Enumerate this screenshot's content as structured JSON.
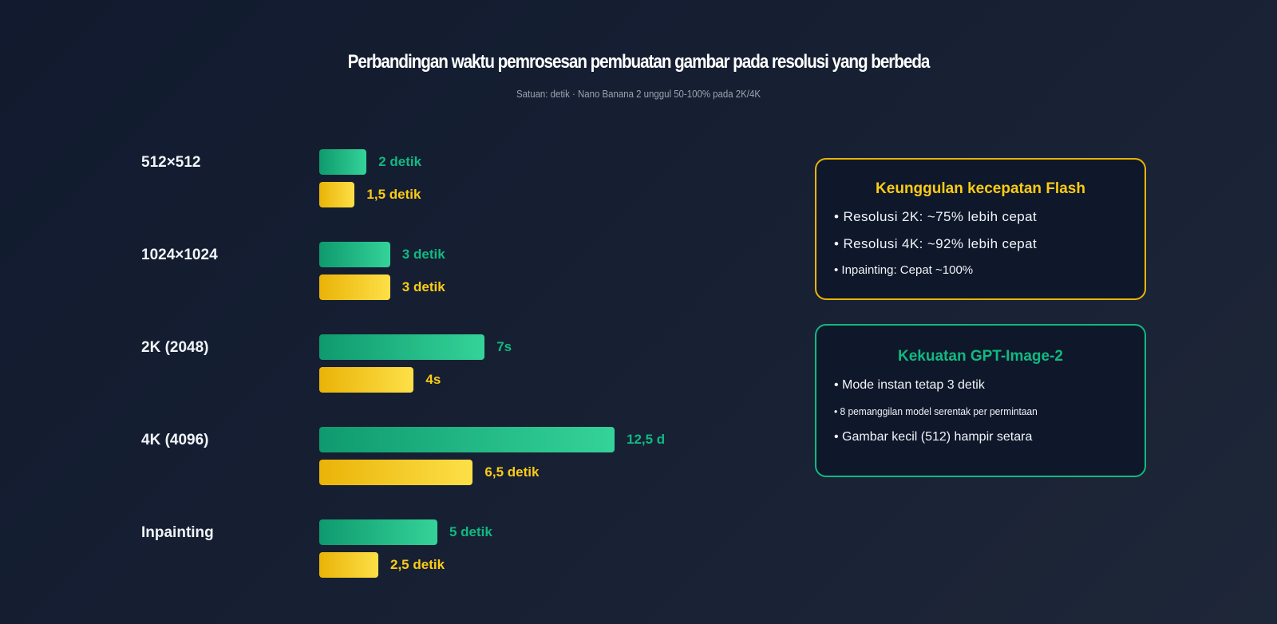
{
  "chart_data": {
    "type": "bar",
    "orientation": "horizontal",
    "title": "Perbandingan waktu pemrosesan pembuatan gambar pada resolusi yang berbeda",
    "subtitle": "Satuan: detik · Nano Banana 2 unggul 50-100% pada 2K/4K",
    "categories": [
      "512×512",
      "1024×1024",
      "2K (2048)",
      "4K (4096)",
      "Inpainting"
    ],
    "series": [
      {
        "color": "#10b981",
        "values": [
          2,
          3,
          7,
          12.5,
          5
        ],
        "labels": [
          "2 detik",
          "3 detik",
          "7s",
          "12,5 d",
          "5 detik"
        ]
      },
      {
        "color": "#facc15",
        "values": [
          1.5,
          3,
          4,
          6.5,
          2.5
        ],
        "labels": [
          "1,5 detik",
          "3 detik",
          "4s",
          "6,5 detik",
          "2,5 detik"
        ]
      }
    ]
  },
  "panels": [
    {
      "title": "Keunggulan kecepatan Flash",
      "color": "#facc15",
      "items": [
        "• Resolusi 2K: ~75% lebih cepat",
        "• Resolusi 4K: ~92% lebih cepat",
        "• Inpainting: Cepat ~100%"
      ]
    },
    {
      "title": "Kekuatan GPT-Image-2",
      "color": "#10b981",
      "items": [
        "• Mode instan tetap 3 detik",
        "• 8 pemanggilan model serentak per permintaan",
        "• Gambar kecil (512) hampir setara"
      ]
    }
  ]
}
